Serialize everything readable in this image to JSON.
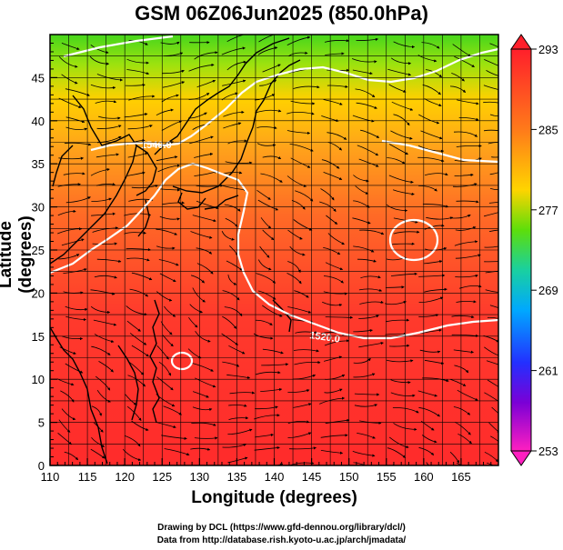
{
  "title": "GSM 06Z06Jun2025 (850.0hPa)",
  "xlabel": "Longitude (degrees)",
  "ylabel": "Latitude  (degrees)",
  "credits": {
    "line1": "Drawing by DCL (https://www.gfd-dennou.org/library/dcl/)",
    "line2": "Data from http://database.rish.kyoto-u.ac.jp/arch/jmadata/"
  },
  "map": {
    "lon_range": [
      110,
      170
    ],
    "lat_range": [
      0,
      50
    ],
    "x_ticks": [
      "110",
      "115",
      "120",
      "125",
      "130",
      "135",
      "140",
      "145",
      "150",
      "155",
      "160",
      "165"
    ],
    "y_ticks": [
      "0",
      "5",
      "10",
      "15",
      "20",
      "25",
      "30",
      "35",
      "40",
      "45"
    ],
    "grid_step_deg": 2.5,
    "field": "temperature (shaded) with wind streamlines and pressure contours",
    "contour_labels": [
      "1520.0",
      "1540.0"
    ]
  },
  "colorbar": {
    "labels": [
      "293",
      "285",
      "277",
      "269",
      "261",
      "253"
    ],
    "min": 253,
    "max": 293,
    "colors": [
      "#ff1f2b",
      "#ff7a1a",
      "#ffd400",
      "#5dde0a",
      "#19d0a0",
      "#00a8ff",
      "#2330ff",
      "#7b00d6",
      "#ff1fc0"
    ]
  }
}
